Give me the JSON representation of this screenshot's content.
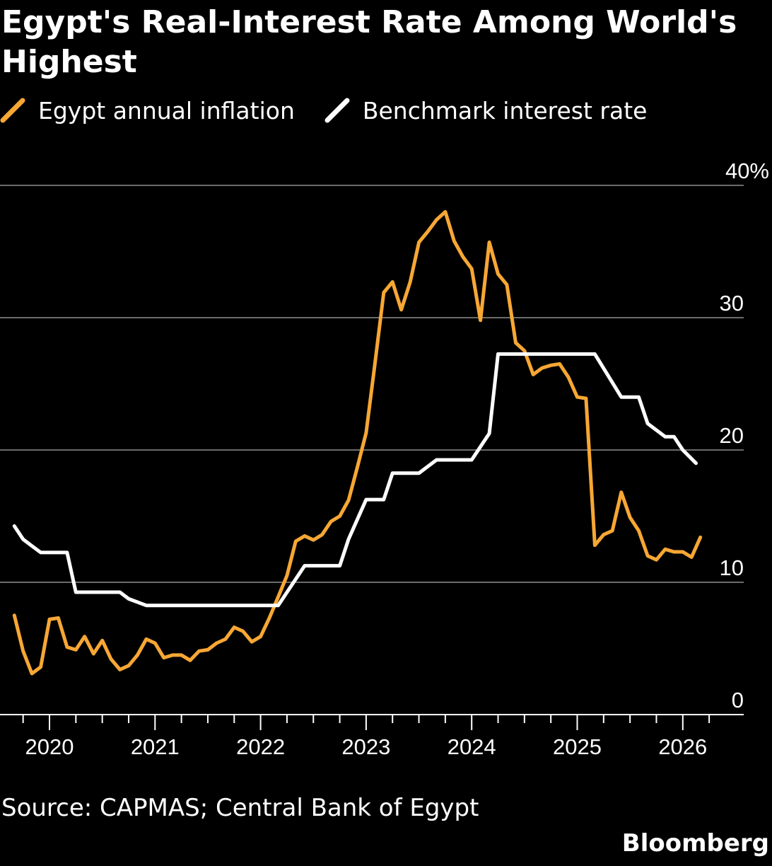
{
  "header": {
    "title": "Egypt's Real-Interest Rate Among World's Highest"
  },
  "legend": [
    {
      "label": "Egypt annual inflation",
      "color": "#f7a734"
    },
    {
      "label": "Benchmark interest rate",
      "color": "#ffffff"
    }
  ],
  "footer": {
    "source": "Source: CAPMAS; Central Bank of Egypt",
    "brand": "Bloomberg"
  },
  "chart_data": {
    "type": "line",
    "title": "Egypt's Real-Interest Rate Among World's Highest",
    "xlabel": "",
    "ylabel": "",
    "xlim": [
      2019.6,
      2026.6
    ],
    "ylim": [
      0,
      40
    ],
    "y_ticks": [
      0,
      10,
      20,
      30,
      40
    ],
    "y_tick_labels": [
      "0",
      "10",
      "20",
      "30",
      "40%"
    ],
    "x_ticks": [
      2020,
      2021,
      2022,
      2023,
      2024,
      2025,
      2026
    ],
    "x_tick_labels": [
      "2020",
      "2021",
      "2022",
      "2023",
      "2024",
      "2025",
      "2026"
    ],
    "grid": true,
    "legend_position": "top-left",
    "series": [
      {
        "name": "Egypt annual inflation",
        "color": "#f7a734",
        "points": [
          [
            2019.667,
            7.5
          ],
          [
            2019.75,
            4.8
          ],
          [
            2019.833,
            3.1
          ],
          [
            2019.917,
            3.6
          ],
          [
            2020.0,
            7.2
          ],
          [
            2020.083,
            7.3
          ],
          [
            2020.167,
            5.1
          ],
          [
            2020.25,
            4.9
          ],
          [
            2020.333,
            5.9
          ],
          [
            2020.417,
            4.6
          ],
          [
            2020.5,
            5.6
          ],
          [
            2020.583,
            4.2
          ],
          [
            2020.667,
            3.4
          ],
          [
            2020.75,
            3.7
          ],
          [
            2020.833,
            4.5
          ],
          [
            2020.917,
            5.7
          ],
          [
            2021.0,
            5.4
          ],
          [
            2021.083,
            4.3
          ],
          [
            2021.167,
            4.5
          ],
          [
            2021.25,
            4.5
          ],
          [
            2021.333,
            4.1
          ],
          [
            2021.417,
            4.8
          ],
          [
            2021.5,
            4.9
          ],
          [
            2021.583,
            5.4
          ],
          [
            2021.667,
            5.7
          ],
          [
            2021.75,
            6.6
          ],
          [
            2021.833,
            6.3
          ],
          [
            2021.917,
            5.5
          ],
          [
            2022.0,
            5.9
          ],
          [
            2022.083,
            7.3
          ],
          [
            2022.167,
            8.9
          ],
          [
            2022.25,
            10.5
          ],
          [
            2022.333,
            13.1
          ],
          [
            2022.417,
            13.5
          ],
          [
            2022.5,
            13.2
          ],
          [
            2022.583,
            13.6
          ],
          [
            2022.667,
            14.6
          ],
          [
            2022.75,
            15.0
          ],
          [
            2022.833,
            16.2
          ],
          [
            2022.917,
            18.7
          ],
          [
            2023.0,
            21.3
          ],
          [
            2023.083,
            26.5
          ],
          [
            2023.167,
            31.9
          ],
          [
            2023.25,
            32.7
          ],
          [
            2023.333,
            30.6
          ],
          [
            2023.417,
            32.7
          ],
          [
            2023.5,
            35.7
          ],
          [
            2023.583,
            36.5
          ],
          [
            2023.667,
            37.4
          ],
          [
            2023.75,
            38.0
          ],
          [
            2023.833,
            35.8
          ],
          [
            2023.917,
            34.6
          ],
          [
            2024.0,
            33.7
          ],
          [
            2024.083,
            29.8
          ],
          [
            2024.167,
            35.7
          ],
          [
            2024.25,
            33.3
          ],
          [
            2024.333,
            32.5
          ],
          [
            2024.417,
            28.1
          ],
          [
            2024.5,
            27.5
          ],
          [
            2024.583,
            25.7
          ],
          [
            2024.667,
            26.2
          ],
          [
            2024.75,
            26.4
          ],
          [
            2024.833,
            26.5
          ],
          [
            2024.917,
            25.5
          ],
          [
            2025.0,
            24.0
          ],
          [
            2025.083,
            23.9
          ],
          [
            2025.167,
            12.8
          ],
          [
            2025.25,
            13.6
          ],
          [
            2025.333,
            13.9
          ],
          [
            2025.417,
            16.8
          ],
          [
            2025.5,
            14.9
          ],
          [
            2025.583,
            13.9
          ],
          [
            2025.667,
            12.0
          ],
          [
            2025.75,
            11.7
          ],
          [
            2025.833,
            12.5
          ],
          [
            2025.917,
            12.3
          ],
          [
            2026.0,
            12.3
          ],
          [
            2026.083,
            11.9
          ],
          [
            2026.167,
            13.4
          ]
        ]
      },
      {
        "name": "Benchmark interest rate",
        "color": "#ffffff",
        "points": [
          [
            2019.667,
            14.25
          ],
          [
            2019.75,
            13.25
          ],
          [
            2019.833,
            12.75
          ],
          [
            2019.917,
            12.25
          ],
          [
            2020.167,
            12.25
          ],
          [
            2020.25,
            9.25
          ],
          [
            2020.667,
            9.25
          ],
          [
            2020.75,
            8.75
          ],
          [
            2020.917,
            8.25
          ],
          [
            2022.167,
            8.25
          ],
          [
            2022.417,
            11.25
          ],
          [
            2022.75,
            11.25
          ],
          [
            2022.833,
            13.25
          ],
          [
            2023.0,
            16.25
          ],
          [
            2023.167,
            16.25
          ],
          [
            2023.25,
            18.25
          ],
          [
            2023.5,
            18.25
          ],
          [
            2023.667,
            19.25
          ],
          [
            2024.0,
            19.25
          ],
          [
            2024.167,
            21.25
          ],
          [
            2024.25,
            27.25
          ],
          [
            2025.167,
            27.25
          ],
          [
            2025.417,
            24.0
          ],
          [
            2025.583,
            24.0
          ],
          [
            2025.667,
            22.0
          ],
          [
            2025.833,
            21.0
          ],
          [
            2025.917,
            21.0
          ],
          [
            2026.0,
            20.0
          ],
          [
            2026.125,
            19.0
          ]
        ]
      }
    ]
  }
}
